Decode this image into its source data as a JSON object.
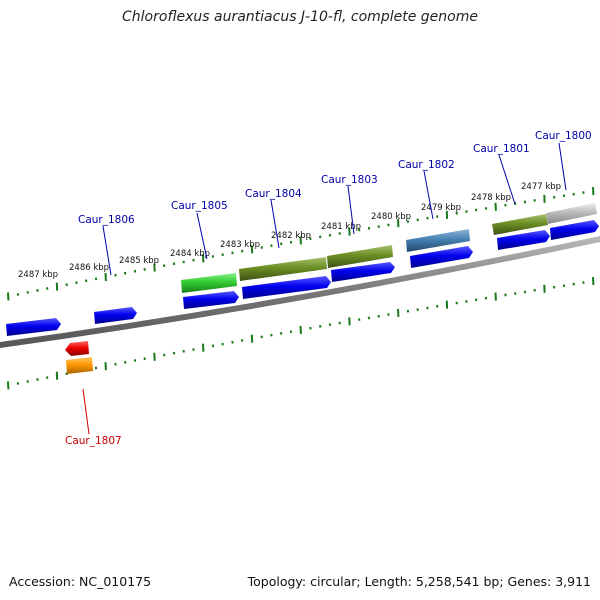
{
  "title": "Chloroflexus aurantiacus J-10-fl, complete genome",
  "footer": {
    "accession": "Accession: NC_010175",
    "topology": "Topology: circular; Length: 5,258,541 bp; Genes: 3,911"
  },
  "kbp_labels": [
    "2477 kbp",
    "2478 kbp",
    "2479 kbp",
    "2480 kbp",
    "2481 kbp",
    "2482 kbp",
    "2483 kbp",
    "2484 kbp",
    "2485 kbp",
    "2486 kbp",
    "2487 kbp"
  ],
  "genes": [
    {
      "name": "Caur_1800",
      "color": "#0000aa"
    },
    {
      "name": "Caur_1801",
      "color": "#0000aa"
    },
    {
      "name": "Caur_1802",
      "color": "#0000aa"
    },
    {
      "name": "Caur_1803",
      "color": "#0000aa"
    },
    {
      "name": "Caur_1804",
      "color": "#0000aa"
    },
    {
      "name": "Caur_1805",
      "color": "#0000aa"
    },
    {
      "name": "Caur_1806",
      "color": "#0000aa"
    },
    {
      "name": "Caur_1807",
      "color": "#cc0000"
    }
  ],
  "colors": {
    "backbone": "#888888",
    "tick": "#1a7a1a",
    "cds": "#0000ee",
    "cds_reverse": "#ee0000",
    "feature_bright_green": "#33cc33",
    "feature_olive": "#6b8e23",
    "feature_steelblue": "#4682b4",
    "feature_gray": "#bbbbbb",
    "feature_orange": "#ff9900"
  }
}
